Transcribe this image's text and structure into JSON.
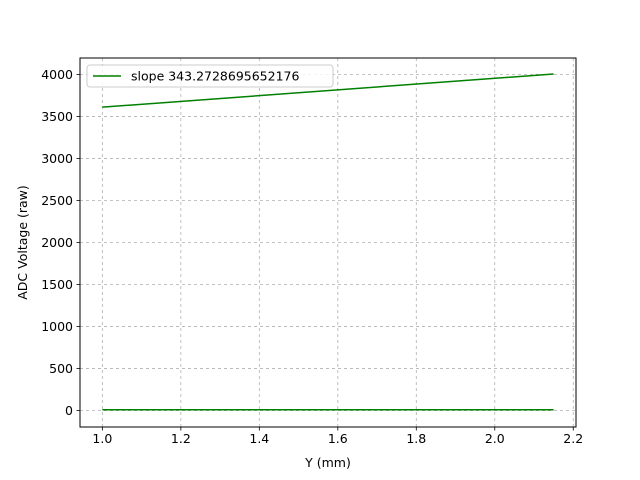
{
  "chart_data": {
    "type": "line",
    "title": "",
    "xlabel": "Y (mm)",
    "ylabel": "ADC Voltage (raw)",
    "xlim": [
      0.943,
      2.207
    ],
    "ylim": [
      -195,
      4195
    ],
    "xticks": [
      1.0,
      1.2,
      1.4,
      1.6,
      1.8,
      2.0,
      2.2
    ],
    "xtick_labels": [
      "1.0",
      "1.2",
      "1.4",
      "1.6",
      "1.8",
      "2.0",
      "2.2"
    ],
    "yticks": [
      0,
      500,
      1000,
      1500,
      2000,
      2500,
      3000,
      3500,
      4000
    ],
    "ytick_labels": [
      "0",
      "500",
      "1000",
      "1500",
      "2000",
      "2500",
      "3000",
      "3500",
      "4000"
    ],
    "grid": true,
    "grid_style": "dashed",
    "legend_position": "top-left",
    "series": [
      {
        "name": "slope 343.2728695652176",
        "color": "#008000",
        "in_legend": true,
        "x": [
          1.0,
          2.15
        ],
        "y": [
          3610,
          4005
        ]
      },
      {
        "color": "#008000",
        "in_legend": false,
        "x": [
          1.0,
          2.15
        ],
        "y": [
          10,
          10
        ]
      }
    ]
  }
}
